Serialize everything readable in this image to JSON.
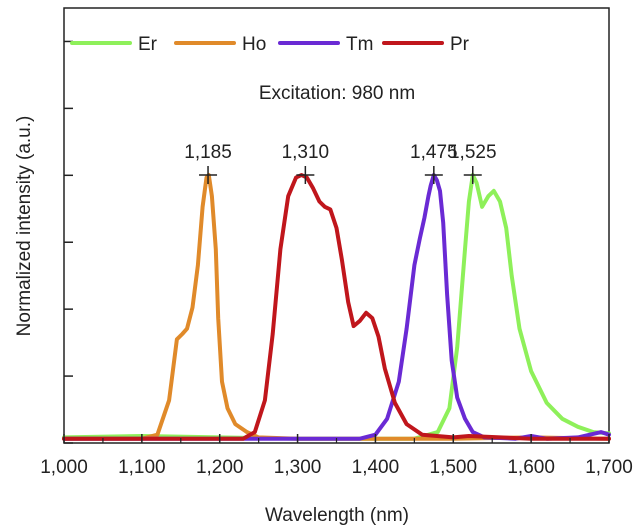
{
  "chart_data": {
    "type": "line",
    "annotation": "Excitation: 980 nm",
    "xlabel": "Wavelength (nm)",
    "ylabel": "Normalized intensity (a.u.)",
    "xlim": [
      1000,
      1700
    ],
    "ylim": [
      0,
      1.2
    ],
    "x_ticks": [
      1000,
      1100,
      1200,
      1300,
      1400,
      1500,
      1600,
      1700
    ],
    "x_tick_labels": [
      "1,000",
      "1,100",
      "1,200",
      "1,300",
      "1,400",
      "1,500",
      "1,600",
      "1,700"
    ],
    "y_tick_count": 6,
    "legend_position": "top",
    "grid": false,
    "peak_labels": [
      {
        "x": 1185,
        "y": 1.0,
        "label": "1,185"
      },
      {
        "x": 1310,
        "y": 1.0,
        "label": "1,310"
      },
      {
        "x": 1475,
        "y": 1.0,
        "label": "1,475"
      },
      {
        "x": 1525,
        "y": 1.0,
        "label": "1,525"
      }
    ],
    "series": [
      {
        "name": "Er",
        "color": "#8ef05a",
        "points": [
          [
            1000,
            0.01
          ],
          [
            1100,
            0.015
          ],
          [
            1300,
            0.005
          ],
          [
            1450,
            0.005
          ],
          [
            1480,
            0.03
          ],
          [
            1495,
            0.12
          ],
          [
            1505,
            0.35
          ],
          [
            1515,
            0.72
          ],
          [
            1520,
            0.9
          ],
          [
            1525,
            1.0
          ],
          [
            1530,
            0.97
          ],
          [
            1537,
            0.88
          ],
          [
            1545,
            0.92
          ],
          [
            1552,
            0.94
          ],
          [
            1560,
            0.9
          ],
          [
            1568,
            0.8
          ],
          [
            1575,
            0.62
          ],
          [
            1585,
            0.42
          ],
          [
            1600,
            0.26
          ],
          [
            1620,
            0.14
          ],
          [
            1640,
            0.08
          ],
          [
            1660,
            0.05
          ],
          [
            1680,
            0.03
          ],
          [
            1700,
            0.025
          ]
        ]
      },
      {
        "name": "Ho",
        "color": "#e08a2a",
        "points": [
          [
            1000,
            0.005
          ],
          [
            1100,
            0.005
          ],
          [
            1120,
            0.02
          ],
          [
            1135,
            0.15
          ],
          [
            1145,
            0.38
          ],
          [
            1152,
            0.4
          ],
          [
            1158,
            0.42
          ],
          [
            1165,
            0.5
          ],
          [
            1172,
            0.66
          ],
          [
            1178,
            0.88
          ],
          [
            1183,
            0.99
          ],
          [
            1186,
            1.0
          ],
          [
            1190,
            0.92
          ],
          [
            1195,
            0.72
          ],
          [
            1198,
            0.46
          ],
          [
            1203,
            0.22
          ],
          [
            1210,
            0.12
          ],
          [
            1220,
            0.06
          ],
          [
            1235,
            0.03
          ],
          [
            1250,
            0.01
          ],
          [
            1300,
            0.005
          ],
          [
            1400,
            0.005
          ],
          [
            1500,
            0.005
          ],
          [
            1600,
            0.01
          ],
          [
            1700,
            0.005
          ]
        ]
      },
      {
        "name": "Tm",
        "color": "#6a2ad4",
        "points": [
          [
            1000,
            0.005
          ],
          [
            1300,
            0.005
          ],
          [
            1380,
            0.005
          ],
          [
            1400,
            0.02
          ],
          [
            1415,
            0.08
          ],
          [
            1430,
            0.22
          ],
          [
            1440,
            0.42
          ],
          [
            1450,
            0.66
          ],
          [
            1457,
            0.76
          ],
          [
            1463,
            0.84
          ],
          [
            1468,
            0.92
          ],
          [
            1471,
            0.96
          ],
          [
            1475,
            1.0
          ],
          [
            1479,
            0.98
          ],
          [
            1483,
            0.94
          ],
          [
            1487,
            0.82
          ],
          [
            1492,
            0.55
          ],
          [
            1498,
            0.3
          ],
          [
            1505,
            0.16
          ],
          [
            1515,
            0.08
          ],
          [
            1525,
            0.03
          ],
          [
            1540,
            0.01
          ],
          [
            1580,
            0.005
          ],
          [
            1600,
            0.015
          ],
          [
            1620,
            0.005
          ],
          [
            1660,
            0.01
          ],
          [
            1690,
            0.03
          ],
          [
            1700,
            0.02
          ]
        ]
      },
      {
        "name": "Pr",
        "color": "#c0161c",
        "points": [
          [
            1000,
            0.005
          ],
          [
            1100,
            0.005
          ],
          [
            1200,
            0.005
          ],
          [
            1230,
            0.005
          ],
          [
            1245,
            0.03
          ],
          [
            1258,
            0.15
          ],
          [
            1268,
            0.4
          ],
          [
            1278,
            0.72
          ],
          [
            1288,
            0.92
          ],
          [
            1298,
            0.99
          ],
          [
            1305,
            1.0
          ],
          [
            1312,
            0.99
          ],
          [
            1320,
            0.95
          ],
          [
            1328,
            0.9
          ],
          [
            1335,
            0.88
          ],
          [
            1342,
            0.87
          ],
          [
            1350,
            0.8
          ],
          [
            1357,
            0.68
          ],
          [
            1365,
            0.52
          ],
          [
            1372,
            0.43
          ],
          [
            1380,
            0.45
          ],
          [
            1388,
            0.48
          ],
          [
            1396,
            0.46
          ],
          [
            1404,
            0.39
          ],
          [
            1412,
            0.27
          ],
          [
            1425,
            0.14
          ],
          [
            1440,
            0.06
          ],
          [
            1460,
            0.02
          ],
          [
            1500,
            0.01
          ],
          [
            1520,
            0.015
          ],
          [
            1600,
            0.005
          ],
          [
            1700,
            0.005
          ]
        ]
      }
    ]
  }
}
